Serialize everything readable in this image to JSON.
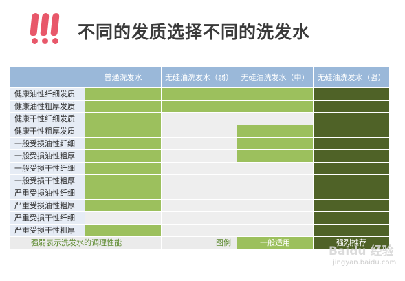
{
  "title": "不同的发质选择不同的洗发水",
  "table": {
    "columns": [
      "普通洗发水",
      "无硅油洗发水（弱）",
      "无硅油洗发水（中）",
      "无硅油洗发水（强）"
    ],
    "rows": [
      {
        "label": "健康油性纤细发质",
        "cells": [
          "light",
          "light",
          "light",
          "dark"
        ]
      },
      {
        "label": "健康油性粗厚发质",
        "cells": [
          "light",
          "light",
          "light",
          "dark"
        ]
      },
      {
        "label": "健康干性纤细发质",
        "cells": [
          "light",
          "none",
          "none",
          "dark"
        ]
      },
      {
        "label": "健康干性粗厚发质",
        "cells": [
          "light",
          "none",
          "light",
          "dark"
        ]
      },
      {
        "label": "一般受损油性纤细",
        "cells": [
          "light",
          "none",
          "light",
          "dark"
        ]
      },
      {
        "label": "一般受损油性粗厚",
        "cells": [
          "light",
          "none",
          "light",
          "dark"
        ]
      },
      {
        "label": "一般受损干性纤细",
        "cells": [
          "light",
          "none",
          "none",
          "dark"
        ]
      },
      {
        "label": "一般受损干性粗厚",
        "cells": [
          "light",
          "none",
          "none",
          "dark"
        ]
      },
      {
        "label": "严重受损油性纤细",
        "cells": [
          "light",
          "none",
          "none",
          "dark"
        ]
      },
      {
        "label": "严重受损油性粗厚",
        "cells": [
          "light",
          "none",
          "none",
          "dark"
        ]
      },
      {
        "label": "严重受损干性纤细",
        "cells": [
          "none",
          "none",
          "none",
          "dark"
        ]
      },
      {
        "label": "严重受损干性粗厚",
        "cells": [
          "light",
          "none",
          "none",
          "dark"
        ]
      }
    ],
    "colors": {
      "none": "#eeeeee",
      "light": "#9cc05d",
      "dark": "#4f6227",
      "header": "#9ab8d9",
      "row_label_bg": "#e6ecf5"
    }
  },
  "footer": {
    "note": "强弱表示洗发水的调理性能",
    "legend_label": "图例",
    "legend_common": "一般适用",
    "legend_strong": "强烈推荐"
  },
  "watermark": {
    "logo": "Baidu 经验",
    "url": "jingyan.baidu.com"
  }
}
